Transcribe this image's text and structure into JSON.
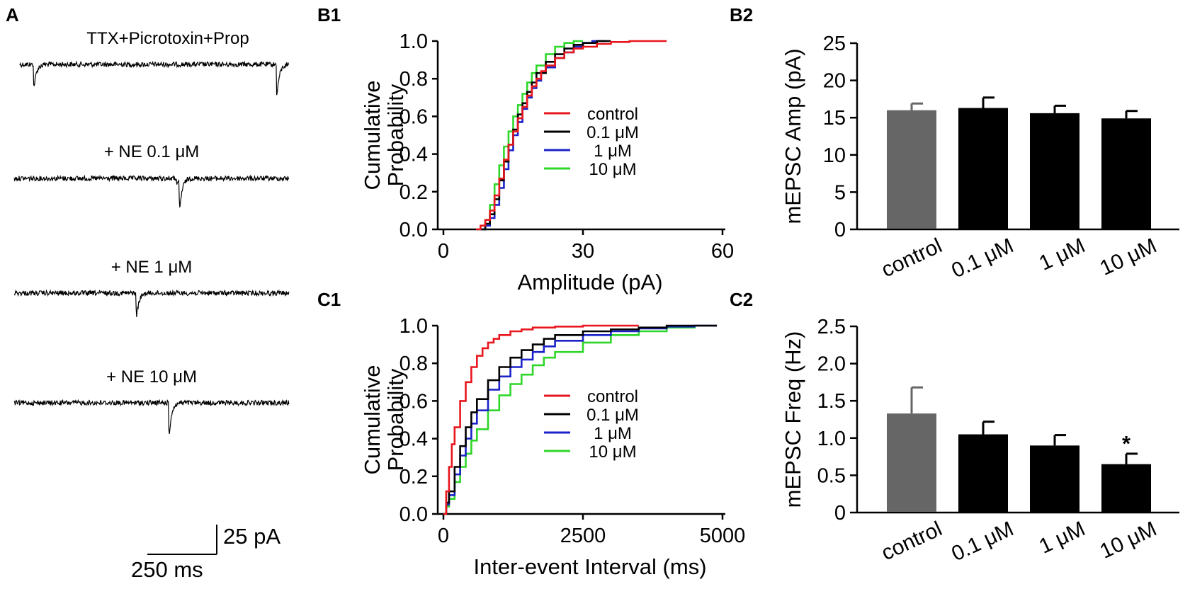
{
  "panels": {
    "a": "A",
    "b1": "B1",
    "b2": "B2",
    "c1": "C1",
    "c2": "C2"
  },
  "traces": [
    {
      "label": "TTX+Picrotoxin+Prop"
    },
    {
      "label": "+ NE 0.1 μM"
    },
    {
      "label": "+ NE 1 μM"
    },
    {
      "label": "+ NE 10 μM"
    }
  ],
  "scale_bar": {
    "y_label": "25 pA",
    "x_label": "250 ms"
  },
  "colors": {
    "control": "#e8161d",
    "c01": "#000000",
    "c1": "#1b22c9",
    "c10": "#2fd62a",
    "bar_control": "#666666",
    "bar_ne": "#000000"
  },
  "chart_data": [
    {
      "id": "B1",
      "type": "line",
      "title": "",
      "xlabel": "Amplitude (pA)",
      "ylabel": "Cumulative Probability",
      "xlim": [
        0,
        60
      ],
      "ylim": [
        0,
        1.0
      ],
      "xticks": [
        "0",
        "30",
        "60"
      ],
      "yticks": [
        "0.0",
        "0.2",
        "0.4",
        "0.6",
        "0.8",
        "1.0"
      ],
      "legend": [
        "control",
        "0.1 μM",
        "1 μM",
        "10 μM"
      ],
      "series": [
        {
          "name": "control",
          "x": [
            7,
            8,
            9,
            10,
            11,
            12,
            13,
            14,
            15,
            16,
            17,
            18,
            19,
            20,
            21,
            22,
            24,
            26,
            28,
            30,
            33,
            36,
            40,
            48
          ],
          "y": [
            0.0,
            0.02,
            0.05,
            0.1,
            0.18,
            0.27,
            0.37,
            0.45,
            0.52,
            0.59,
            0.65,
            0.71,
            0.76,
            0.8,
            0.84,
            0.87,
            0.91,
            0.94,
            0.96,
            0.97,
            0.985,
            0.995,
            1.0,
            1.0
          ]
        },
        {
          "name": "0.1 μM",
          "x": [
            8,
            9,
            10,
            11,
            12,
            13,
            14,
            15,
            16,
            17,
            18,
            19,
            20,
            22,
            24,
            26,
            28,
            30,
            33,
            36
          ],
          "y": [
            0.0,
            0.03,
            0.08,
            0.16,
            0.26,
            0.36,
            0.45,
            0.53,
            0.61,
            0.67,
            0.73,
            0.78,
            0.83,
            0.89,
            0.93,
            0.96,
            0.98,
            0.99,
            1.0,
            1.0
          ]
        },
        {
          "name": "1 μM",
          "x": [
            8,
            9,
            10,
            11,
            12,
            13,
            14,
            15,
            16,
            17,
            18,
            19,
            20,
            21,
            22,
            24,
            26,
            28,
            30,
            32,
            35
          ],
          "y": [
            0.0,
            0.02,
            0.06,
            0.13,
            0.22,
            0.32,
            0.42,
            0.5,
            0.57,
            0.64,
            0.7,
            0.75,
            0.79,
            0.83,
            0.86,
            0.91,
            0.94,
            0.97,
            0.99,
            1.0,
            1.0
          ]
        },
        {
          "name": "10 μM",
          "x": [
            8,
            9,
            10,
            11,
            12,
            13,
            14,
            15,
            16,
            17,
            18,
            19,
            20,
            22,
            24,
            26,
            28,
            30
          ],
          "y": [
            0.0,
            0.05,
            0.13,
            0.24,
            0.34,
            0.44,
            0.52,
            0.6,
            0.66,
            0.72,
            0.78,
            0.83,
            0.87,
            0.93,
            0.97,
            0.99,
            1.0,
            1.0
          ]
        }
      ]
    },
    {
      "id": "C1",
      "type": "line",
      "title": "",
      "xlabel": "Inter-event Interval (ms)",
      "ylabel": "Cumulative Probability",
      "xlim": [
        0,
        5000
      ],
      "ylim": [
        0,
        1.0
      ],
      "xticks": [
        "0",
        "2500",
        "5000"
      ],
      "yticks": [
        "0.0",
        "0.2",
        "0.4",
        "0.6",
        "0.8",
        "1.0"
      ],
      "legend": [
        "control",
        "0.1 μM",
        "1 μM",
        "10 μM"
      ],
      "series": [
        {
          "name": "control",
          "x": [
            0,
            50,
            100,
            150,
            200,
            300,
            400,
            500,
            600,
            700,
            800,
            900,
            1000,
            1200,
            1400,
            1600,
            2000,
            2500,
            3000,
            3500
          ],
          "y": [
            0.0,
            0.12,
            0.25,
            0.37,
            0.46,
            0.6,
            0.7,
            0.78,
            0.84,
            0.88,
            0.91,
            0.93,
            0.95,
            0.97,
            0.98,
            0.99,
            0.995,
            1.0,
            1.0,
            1.0
          ]
        },
        {
          "name": "0.1 μM",
          "x": [
            0,
            50,
            100,
            200,
            300,
            400,
            500,
            600,
            800,
            1000,
            1200,
            1400,
            1600,
            1800,
            2000,
            2500,
            3000,
            3500,
            4000,
            4900
          ],
          "y": [
            0.0,
            0.06,
            0.12,
            0.25,
            0.36,
            0.46,
            0.54,
            0.61,
            0.71,
            0.78,
            0.83,
            0.87,
            0.9,
            0.93,
            0.95,
            0.97,
            0.98,
            0.99,
            1.0,
            1.0
          ]
        },
        {
          "name": "1 μM",
          "x": [
            0,
            50,
            100,
            200,
            300,
            400,
            500,
            600,
            800,
            1000,
            1200,
            1400,
            1600,
            1800,
            2000,
            2500,
            3000,
            3500,
            4000,
            4500,
            4900
          ],
          "y": [
            0.0,
            0.05,
            0.1,
            0.21,
            0.31,
            0.4,
            0.48,
            0.55,
            0.66,
            0.73,
            0.78,
            0.82,
            0.86,
            0.89,
            0.92,
            0.95,
            0.97,
            0.985,
            0.995,
            1.0,
            1.0
          ]
        },
        {
          "name": "10 μM",
          "x": [
            0,
            50,
            100,
            200,
            300,
            400,
            500,
            600,
            800,
            1000,
            1200,
            1400,
            1600,
            1800,
            2000,
            2500,
            3000,
            3500,
            4000,
            4500
          ],
          "y": [
            0.0,
            0.04,
            0.08,
            0.17,
            0.25,
            0.32,
            0.39,
            0.45,
            0.55,
            0.63,
            0.69,
            0.74,
            0.79,
            0.83,
            0.86,
            0.91,
            0.95,
            0.97,
            0.99,
            1.0
          ]
        }
      ]
    },
    {
      "id": "B2",
      "type": "bar",
      "title": "",
      "xlabel": "",
      "ylabel": "mEPSC Amp (pA)",
      "ylim": [
        0,
        25
      ],
      "yticks": [
        "0",
        "5",
        "10",
        "15",
        "20",
        "25"
      ],
      "categories": [
        "control",
        "0.1 μM",
        "1 μM",
        "10 μM"
      ],
      "values": [
        16.0,
        16.3,
        15.6,
        14.9
      ],
      "errors": [
        0.9,
        1.4,
        1.0,
        1.0
      ],
      "annotations": []
    },
    {
      "id": "C2",
      "type": "bar",
      "title": "",
      "xlabel": "",
      "ylabel": "mEPSC Freq (Hz)",
      "ylim": [
        0,
        2.5
      ],
      "yticks": [
        "0",
        "0.5",
        "1.0",
        "1.5",
        "2.0",
        "2.5"
      ],
      "categories": [
        "control",
        "0.1 μM",
        "1 μM",
        "10 μM"
      ],
      "values": [
        1.33,
        1.05,
        0.9,
        0.65
      ],
      "errors": [
        0.35,
        0.17,
        0.14,
        0.14
      ],
      "annotations": [
        "",
        "",
        "",
        "*"
      ]
    }
  ]
}
